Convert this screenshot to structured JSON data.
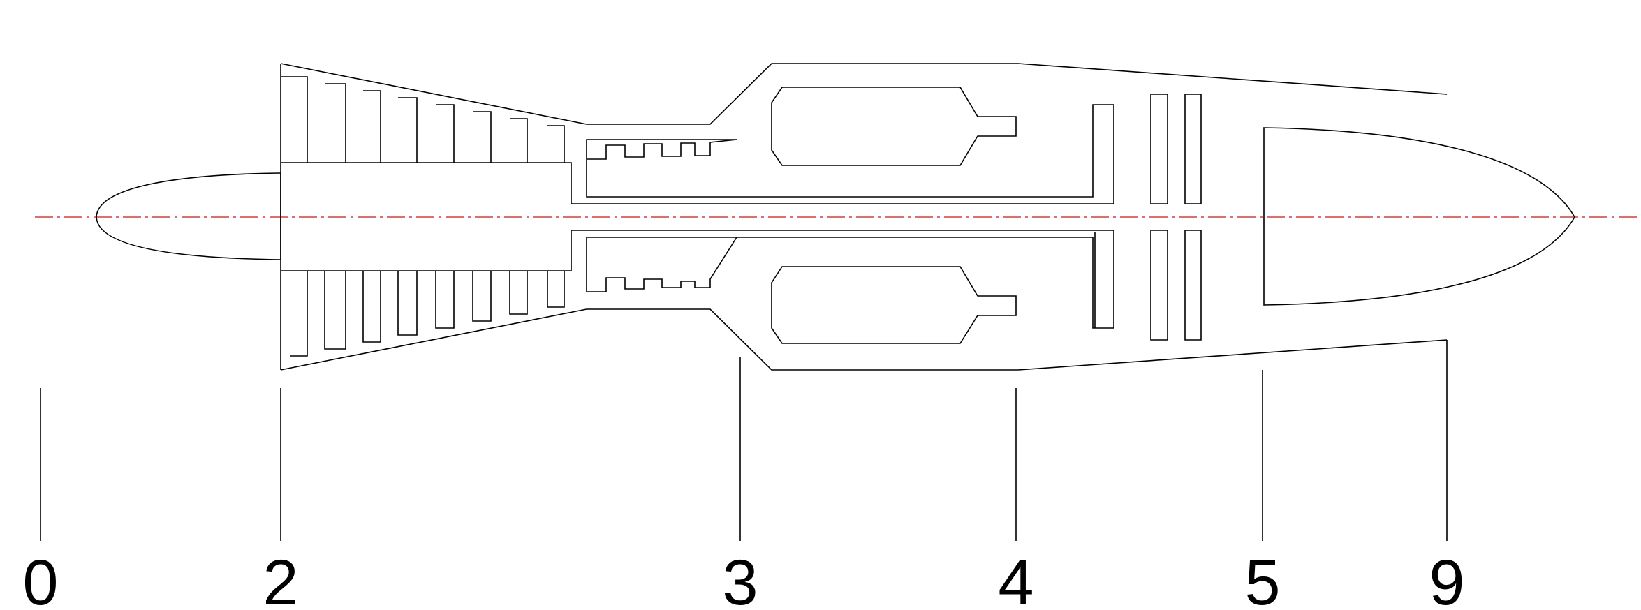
{
  "diagram": {
    "title": "",
    "stations": [
      {
        "label": "0"
      },
      {
        "label": "2"
      },
      {
        "label": "3"
      },
      {
        "label": "4"
      },
      {
        "label": "5"
      },
      {
        "label": "9"
      }
    ]
  },
  "colors": {
    "line": "#000000",
    "centerline": "#d04040",
    "background": "#ffffff"
  }
}
